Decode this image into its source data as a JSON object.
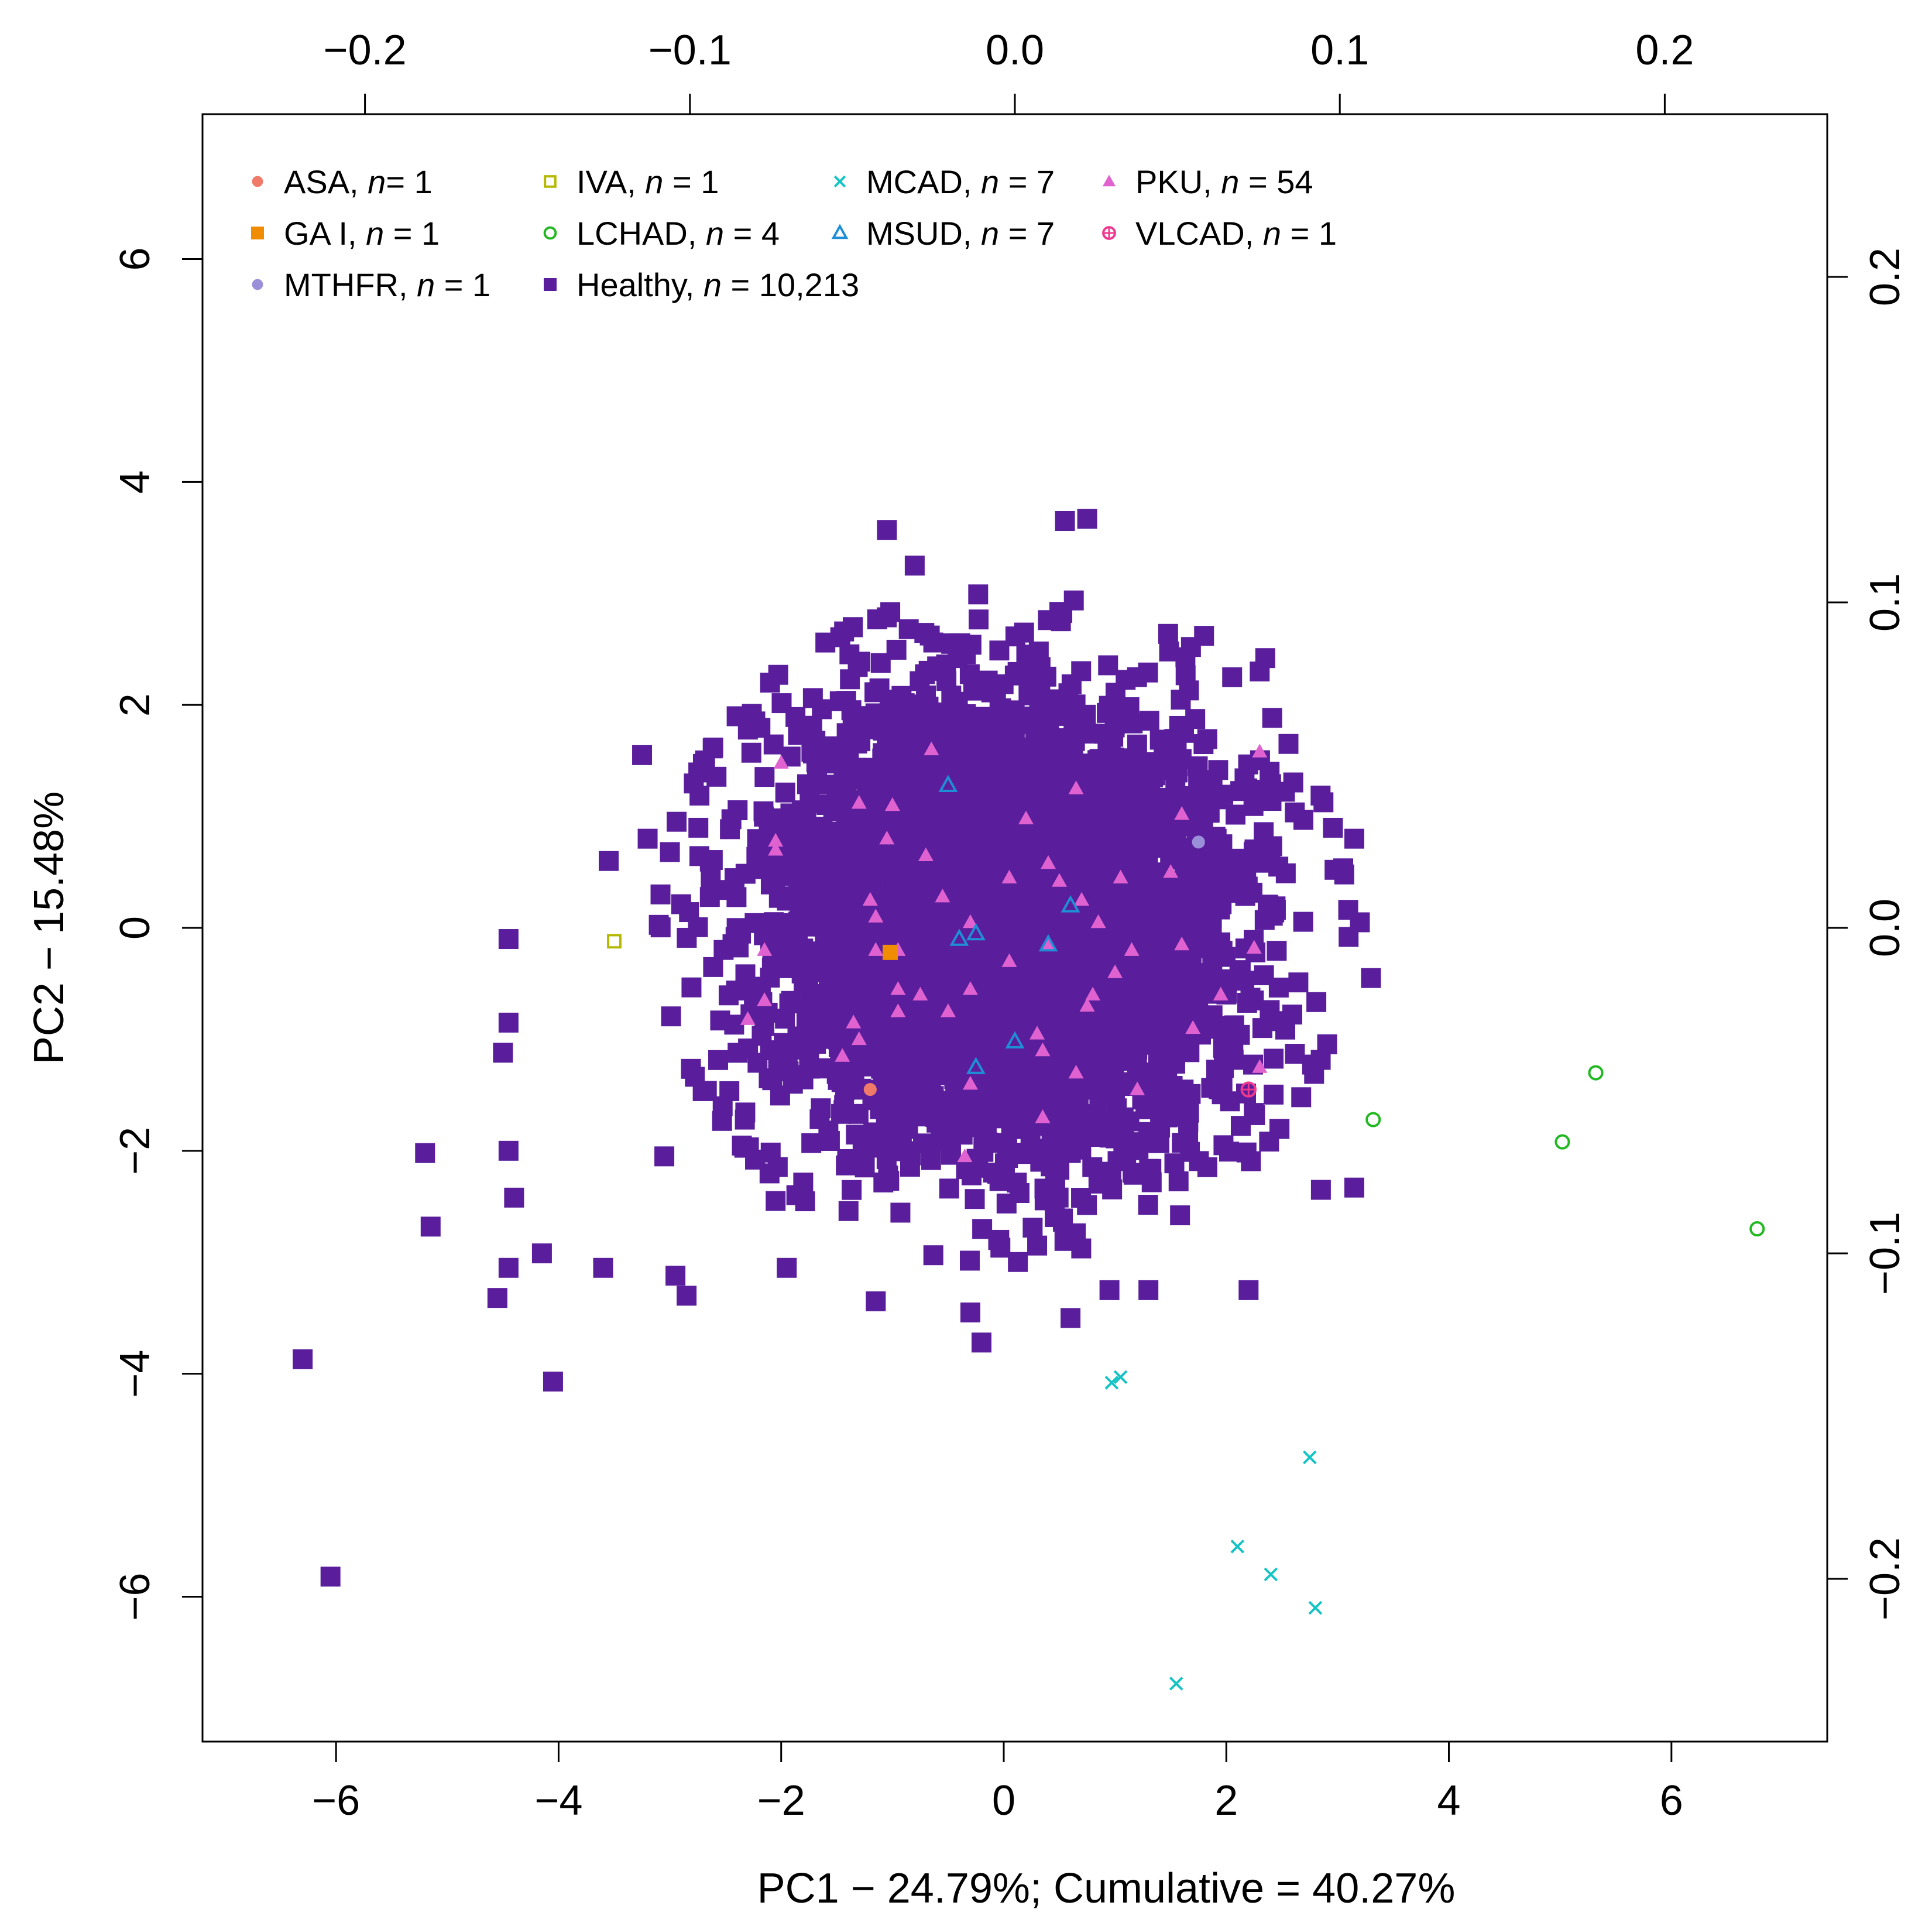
{
  "chart_data": {
    "type": "scatter",
    "title": "",
    "xlabel": "PC1 −  24.79%; Cumulative =  40.27%",
    "ylabel": "PC2 −  15.48%",
    "xlim": [
      -7.2,
      7.4
    ],
    "ylim": [
      -7.3,
      7.3
    ],
    "x_ticks": [
      "−6",
      "−4",
      "−2",
      "0",
      "2",
      "4",
      "6"
    ],
    "y_ticks": [
      "−6",
      "−4",
      "−2",
      "0",
      "2",
      "4",
      "6"
    ],
    "top_axis": {
      "range": [
        -0.25,
        0.25
      ],
      "ticks": [
        "−0.2",
        "−0.1",
        "0.0",
        "0.1",
        "0.2"
      ]
    },
    "right_axis": {
      "range": [
        -0.25,
        0.25
      ],
      "ticks": [
        "−0.2",
        "−0.1",
        "0.0",
        "0.1",
        "0.2"
      ]
    },
    "legend_position": "top-left",
    "legend": [
      {
        "group": "ASA",
        "suffix": ", ",
        "n_label": "n",
        "n_text": "=  1",
        "color": "#f07a6a",
        "marker": "circle-filled"
      },
      {
        "group": "IVA",
        "suffix": ", ",
        "n_label": "n",
        "n_text": " = 1",
        "color": "#b5b800",
        "marker": "square-open"
      },
      {
        "group": "MCAD",
        "suffix": ", ",
        "n_label": "n",
        "n_text": " = 7",
        "color": "#14c3c3",
        "marker": "cross"
      },
      {
        "group": "PKU",
        "suffix": ", ",
        "n_label": "n",
        "n_text": " = 54",
        "color": "#e062d0",
        "marker": "triangle-filled"
      },
      {
        "group": "GA I",
        "suffix": ", ",
        "n_label": "n",
        "n_text": " = 1",
        "color": "#f08c00",
        "marker": "square-filled"
      },
      {
        "group": "LCHAD",
        "suffix": ", ",
        "n_label": "n",
        "n_text": " = 4",
        "color": "#22b822",
        "marker": "circle-open"
      },
      {
        "group": "MSUD",
        "suffix": ", ",
        "n_label": "n",
        "n_text": " = 7",
        "color": "#1e8fd6",
        "marker": "triangle-open"
      },
      {
        "group": "VLCAD",
        "suffix": ", ",
        "n_label": "n",
        "n_text": " = 1",
        "color": "#f0388f",
        "marker": "circle-plus"
      },
      {
        "group": "MTHFR",
        "suffix": ", ",
        "n_label": "n",
        "n_text": " = 1",
        "color": "#9a8fd8",
        "marker": "circle-filled"
      },
      {
        "group": "Healthy",
        "suffix": ", ",
        "n_label": "n",
        "n_text": " = 10,213",
        "color": "#5a1e9c",
        "marker": "square-filled"
      }
    ],
    "series": [
      {
        "name": "ASA",
        "color": "#f07a6a",
        "marker": "circle-filled",
        "points": [
          [
            -1.2,
            -1.45
          ]
        ]
      },
      {
        "name": "IVA",
        "color": "#b5b800",
        "marker": "square-open",
        "points": [
          [
            -3.5,
            -0.12
          ]
        ]
      },
      {
        "name": "GA I",
        "color": "#f08c00",
        "marker": "square-filled",
        "points": [
          [
            -1.02,
            -0.22
          ]
        ]
      },
      {
        "name": "MTHFR",
        "color": "#9a8fd8",
        "marker": "circle-filled",
        "points": [
          [
            1.75,
            0.77
          ]
        ]
      },
      {
        "name": "VLCAD",
        "color": "#f0388f",
        "marker": "circle-plus",
        "points": [
          [
            2.2,
            -1.45
          ]
        ]
      },
      {
        "name": "LCHAD",
        "color": "#22b822",
        "marker": "circle-open",
        "points": [
          [
            3.32,
            -1.72
          ],
          [
            5.02,
            -1.92
          ],
          [
            5.32,
            -1.3
          ],
          [
            6.77,
            -2.7
          ]
        ]
      },
      {
        "name": "MCAD",
        "color": "#14c3c3",
        "marker": "cross",
        "points": [
          [
            0.97,
            -4.08
          ],
          [
            1.05,
            -4.03
          ],
          [
            2.75,
            -4.75
          ],
          [
            2.1,
            -5.55
          ],
          [
            2.4,
            -5.8
          ],
          [
            2.8,
            -6.1
          ],
          [
            1.55,
            -6.78
          ]
        ]
      },
      {
        "name": "MSUD",
        "color": "#1e8fd6",
        "marker": "triangle-open",
        "points": [
          [
            -0.5,
            1.28
          ],
          [
            0.6,
            0.2
          ],
          [
            -0.25,
            -0.05
          ],
          [
            -0.4,
            -0.1
          ],
          [
            0.4,
            -0.15
          ],
          [
            0.1,
            -1.02
          ],
          [
            -0.25,
            -1.25
          ]
        ]
      },
      {
        "name": "PKU",
        "color": "#e062d0",
        "marker": "triangle-filled",
        "points": [
          [
            -0.65,
            1.6
          ],
          [
            2.3,
            1.58
          ],
          [
            -2.0,
            1.48
          ],
          [
            -1.3,
            1.12
          ],
          [
            -1.0,
            1.1
          ],
          [
            0.65,
            1.25
          ],
          [
            1.6,
            1.02
          ],
          [
            0.2,
            0.98
          ],
          [
            -2.05,
            0.78
          ],
          [
            -2.05,
            0.7
          ],
          [
            -1.05,
            0.8
          ],
          [
            -0.7,
            0.65
          ],
          [
            0.4,
            0.58
          ],
          [
            0.5,
            0.42
          ],
          [
            1.05,
            0.45
          ],
          [
            1.5,
            0.5
          ],
          [
            -1.2,
            0.25
          ],
          [
            -0.55,
            0.28
          ],
          [
            0.7,
            0.25
          ],
          [
            -1.15,
            0.1
          ],
          [
            -0.3,
            0.05
          ],
          [
            0.85,
            0.05
          ],
          [
            -2.15,
            -0.2
          ],
          [
            -1.15,
            -0.2
          ],
          [
            -0.95,
            -0.2
          ],
          [
            0.4,
            -0.15
          ],
          [
            1.15,
            -0.2
          ],
          [
            1.6,
            -0.15
          ],
          [
            2.25,
            -0.18
          ],
          [
            -0.95,
            -0.55
          ],
          [
            -0.3,
            -0.55
          ],
          [
            0.8,
            -0.6
          ],
          [
            1.95,
            -0.6
          ],
          [
            -0.75,
            -0.6
          ],
          [
            -2.3,
            -0.82
          ],
          [
            -1.35,
            -0.85
          ],
          [
            -0.95,
            -0.75
          ],
          [
            0.3,
            -0.95
          ],
          [
            0.75,
            -0.7
          ],
          [
            -1.3,
            -1.0
          ],
          [
            0.35,
            -1.1
          ],
          [
            -1.45,
            -1.15
          ],
          [
            0.65,
            -1.3
          ],
          [
            -0.3,
            -1.4
          ],
          [
            1.2,
            -1.45
          ],
          [
            2.3,
            -1.25
          ],
          [
            0.35,
            -1.7
          ],
          [
            -0.35,
            -2.05
          ],
          [
            -2.15,
            -0.65
          ],
          [
            1.0,
            -0.4
          ],
          [
            0.05,
            -0.3
          ],
          [
            -0.5,
            -0.75
          ],
          [
            1.7,
            -0.9
          ],
          [
            0.05,
            0.45
          ]
        ]
      },
      {
        "name": "Healthy",
        "color": "#5a1e9c",
        "marker": "square-filled",
        "cloud": {
          "center": [
            0.0,
            0.0
          ],
          "sd": [
            1.05,
            1.0
          ],
          "count": 10213
        },
        "outliers": [
          [
            -6.3,
            -3.87
          ],
          [
            -6.05,
            -5.82
          ],
          [
            -5.2,
            -2.02
          ],
          [
            -5.15,
            -2.68
          ],
          [
            -4.55,
            -3.32
          ],
          [
            -4.45,
            -3.05
          ],
          [
            -4.05,
            -4.07
          ],
          [
            -4.15,
            -2.92
          ],
          [
            -4.45,
            -2.0
          ],
          [
            -4.4,
            -2.42
          ],
          [
            -4.45,
            -0.85
          ],
          [
            -4.5,
            -1.12
          ],
          [
            -4.45,
            -0.1
          ],
          [
            -3.55,
            0.6
          ],
          [
            -3.2,
            0.8
          ],
          [
            -3.25,
            1.55
          ],
          [
            -3.0,
            0.68
          ],
          [
            -3.05,
            -2.05
          ],
          [
            -3.6,
            -3.05
          ],
          [
            -2.95,
            -3.12
          ],
          [
            -2.85,
            -3.3
          ],
          [
            -2.1,
            2.2
          ],
          [
            -1.05,
            3.57
          ],
          [
            -0.8,
            3.25
          ],
          [
            0.55,
            3.65
          ],
          [
            0.75,
            3.67
          ],
          [
            1.8,
            2.62
          ],
          [
            2.35,
            2.42
          ],
          [
            2.3,
            2.3
          ],
          [
            3.15,
            0.8
          ],
          [
            3.2,
            0.05
          ],
          [
            3.3,
            -0.45
          ],
          [
            3.15,
            -2.33
          ],
          [
            2.85,
            -2.35
          ],
          [
            2.2,
            -3.25
          ],
          [
            1.3,
            -3.25
          ],
          [
            0.95,
            -3.25
          ],
          [
            -0.2,
            -3.72
          ],
          [
            -0.3,
            -3.45
          ],
          [
            -1.15,
            -3.35
          ],
          [
            -1.95,
            -3.05
          ],
          [
            -2.05,
            -2.45
          ],
          [
            -0.05,
            -2.8
          ],
          [
            0.3,
            -2.85
          ],
          [
            0.6,
            -3.5
          ]
        ]
      }
    ]
  }
}
